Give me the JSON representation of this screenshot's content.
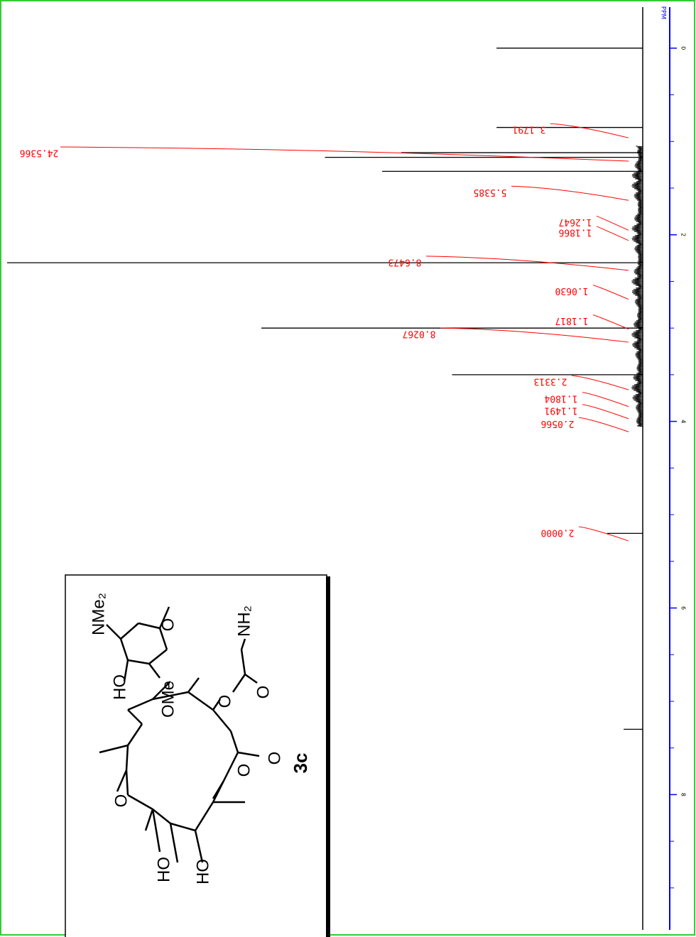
{
  "chart_data": {
    "type": "nmr",
    "axis_label": "PPM",
    "xlim": [
      -0.44,
      9.45
    ],
    "xticks": [
      0,
      2,
      4,
      6,
      8
    ],
    "minor_ticks": [
      0.5,
      1,
      1.5,
      2.5,
      3,
      3.5,
      4.5,
      5,
      5.5,
      6.5,
      7,
      7.5,
      8.5,
      9
    ],
    "ylim": [
      0,
      100
    ],
    "color": "#000000",
    "axis_color": "#0000ff",
    "integral_color": "#ff0000",
    "peaks": {
      "x": [
        0,
        0.85,
        1.12,
        1.17,
        1.32,
        2.3,
        3.0,
        3.5,
        5.2,
        7.3
      ],
      "values": [
        23,
        23,
        38,
        50,
        41,
        100,
        60,
        30,
        5.6,
        3
      ]
    },
    "integrals": {
      "x": [
        0.87,
        1.12,
        1.54,
        1.86,
        1.97,
        2.29,
        2.6,
        2.92,
        3.06,
        3.57,
        3.75,
        3.88,
        4.02,
        5.19
      ],
      "values": [
        3.1791,
        24.5366,
        5.5385,
        1.2647,
        1.1866,
        8.6473,
        1.063,
        1.1817,
        8.0267,
        2.3313,
        1.1804,
        1.1491,
        2.0566,
        2
      ],
      "value_labels": [
        "3.1791",
        "24.5366",
        "5.5385",
        "1.2647",
        "1.1866",
        "8.6473",
        "1.0630",
        "1.1817",
        "8.0267",
        "2.3313",
        "1.1804",
        "1.1491",
        "2.0566",
        "2.0000"
      ]
    }
  },
  "structure": {
    "compound": "3c",
    "groups": [
      "NMe₂",
      "HO",
      "OMe",
      "O",
      "NH₂",
      "O",
      "O",
      "O",
      "O",
      "O",
      "HO",
      "HO"
    ]
  }
}
